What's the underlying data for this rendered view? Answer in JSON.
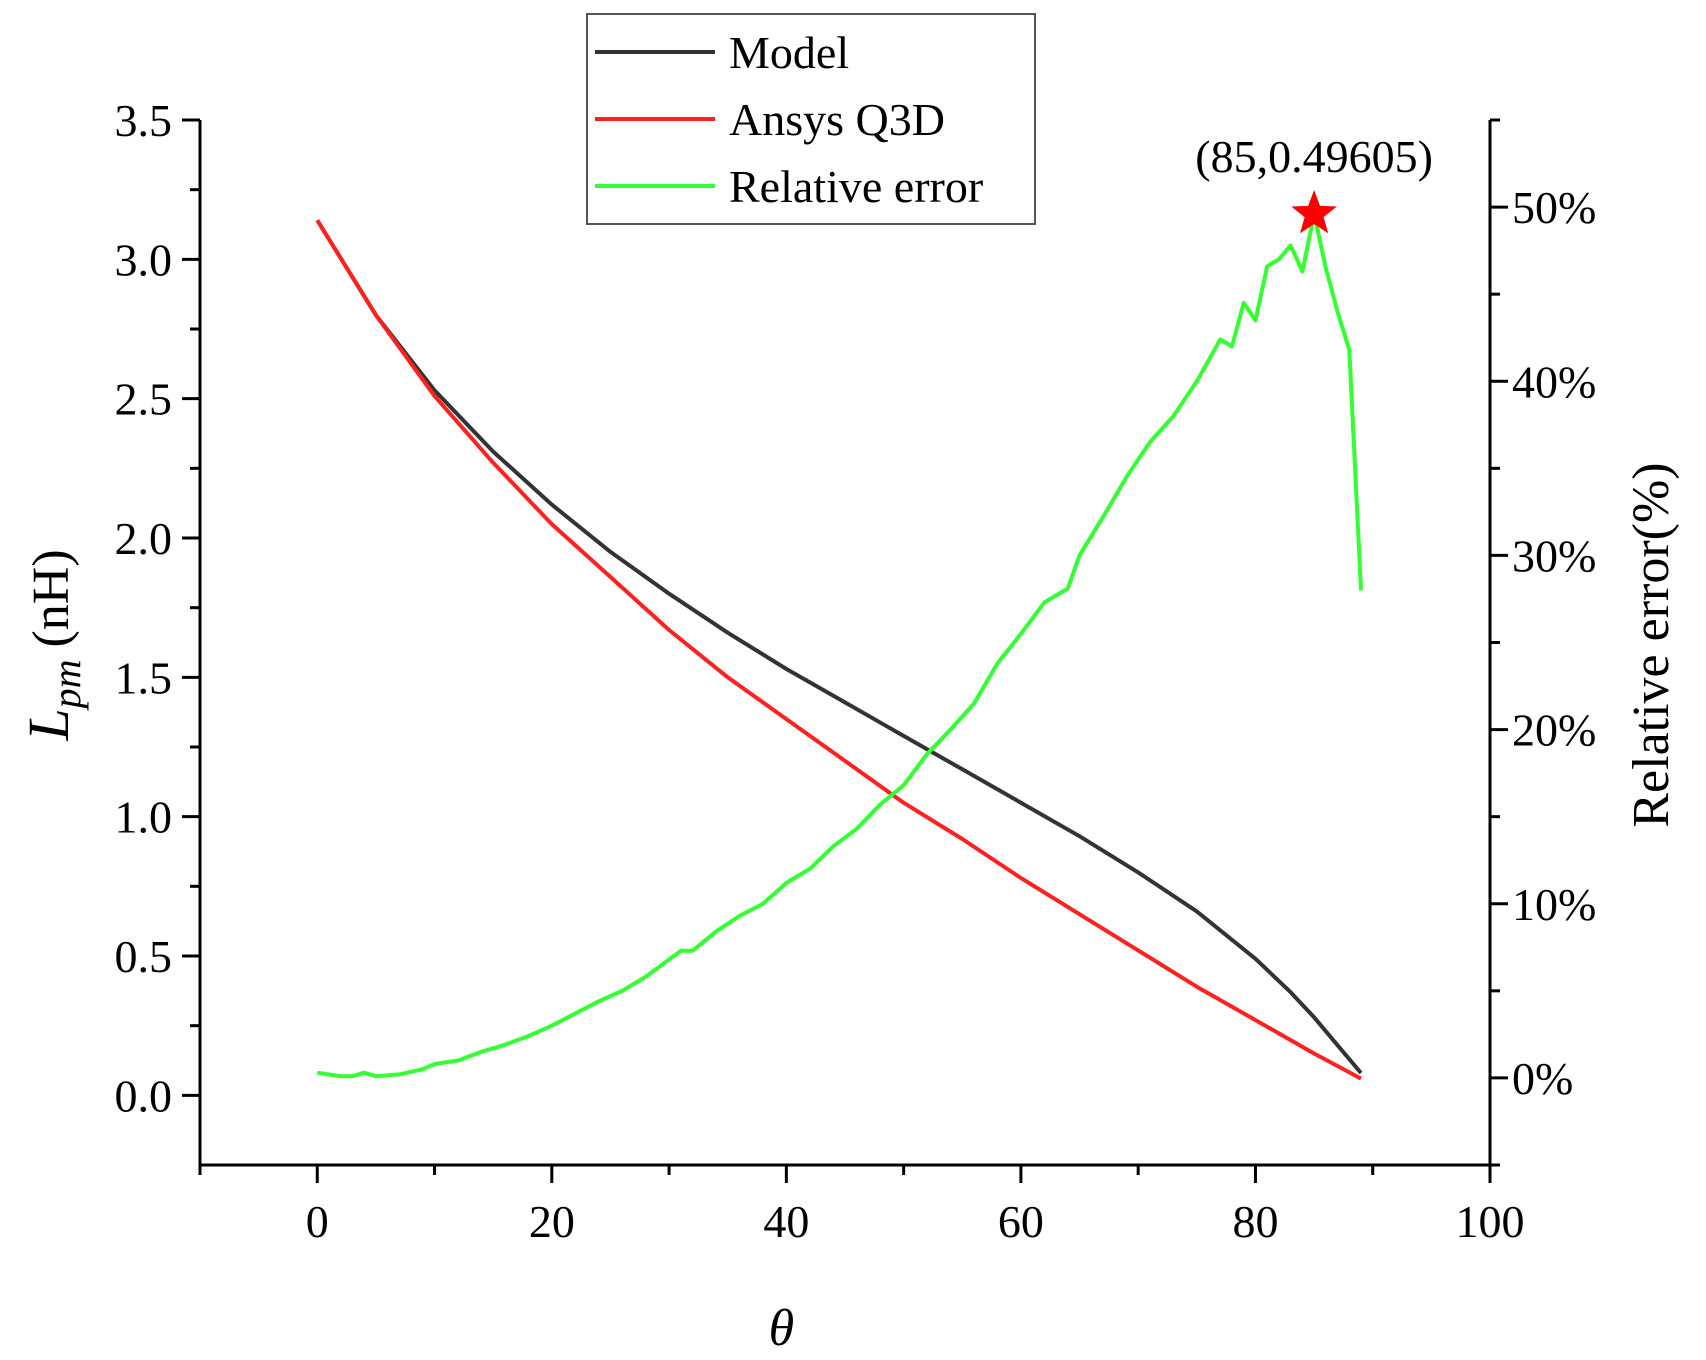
{
  "chart_data": {
    "type": "line",
    "x_axis": {
      "label": "θ",
      "range": [
        -10,
        100
      ],
      "ticks": [
        0,
        20,
        40,
        60,
        80,
        100
      ],
      "tick_labels": [
        "0",
        "20",
        "40",
        "60",
        "80",
        "100"
      ],
      "minor_step": 10
    },
    "y_left": {
      "label_main": "L",
      "label_sub": "pm",
      "label_unit": "(nH)",
      "range": [
        -0.25,
        3.5
      ],
      "ticks": [
        0.0,
        0.5,
        1.0,
        1.5,
        2.0,
        2.5,
        3.0,
        3.5
      ],
      "tick_labels": [
        "0.0",
        "0.5",
        "1.0",
        "1.5",
        "2.0",
        "2.5",
        "3.0",
        "3.5"
      ]
    },
    "y_right": {
      "label": "Relative error(%)",
      "range": [
        -0.05,
        0.55
      ],
      "ticks": [
        0.0,
        0.1,
        0.2,
        0.3,
        0.4,
        0.5
      ],
      "tick_labels": [
        "0%",
        "10%",
        "20%",
        "30%",
        "40%",
        "50%"
      ]
    },
    "legend": {
      "position": "top-center",
      "entries": [
        "Model",
        "Ansys Q3D",
        "Relative error"
      ]
    },
    "series": [
      {
        "name": "Model",
        "axis": "left",
        "color": "#333333",
        "x": [
          0,
          5,
          10,
          15,
          20,
          25,
          30,
          35,
          40,
          45,
          50,
          55,
          60,
          65,
          70,
          75,
          80,
          83,
          85,
          87,
          89
        ],
        "y": [
          3.14,
          2.8,
          2.53,
          2.31,
          2.12,
          1.95,
          1.8,
          1.66,
          1.53,
          1.41,
          1.29,
          1.17,
          1.05,
          0.93,
          0.8,
          0.66,
          0.49,
          0.37,
          0.28,
          0.18,
          0.08
        ]
      },
      {
        "name": "Ansys Q3D",
        "axis": "left",
        "color": "#ff2020",
        "x": [
          0,
          5,
          10,
          15,
          20,
          25,
          30,
          35,
          40,
          45,
          50,
          55,
          60,
          65,
          70,
          75,
          80,
          85,
          89
        ],
        "y": [
          3.14,
          2.8,
          2.51,
          2.27,
          2.05,
          1.86,
          1.67,
          1.5,
          1.35,
          1.2,
          1.05,
          0.92,
          0.78,
          0.65,
          0.52,
          0.39,
          0.27,
          0.15,
          0.06
        ]
      },
      {
        "name": "Relative error",
        "axis": "right",
        "color": "#33ff33",
        "x": [
          0,
          2,
          3,
          4,
          5,
          7,
          9,
          10,
          12,
          14,
          16,
          18,
          20,
          22,
          24,
          26,
          28,
          30,
          31,
          32,
          34,
          36,
          38,
          40,
          42,
          44,
          46,
          48,
          50,
          52,
          54,
          56,
          58,
          60,
          62,
          64,
          65,
          67,
          69,
          71,
          73,
          75,
          77,
          78,
          79,
          80,
          81,
          82,
          83,
          84,
          85,
          86,
          87,
          88,
          89
        ],
        "y": [
          0.003,
          0.001,
          0.001,
          0.003,
          0.001,
          0.002,
          0.005,
          0.008,
          0.01,
          0.015,
          0.019,
          0.024,
          0.03,
          0.037,
          0.044,
          0.05,
          0.058,
          0.068,
          0.073,
          0.073,
          0.084,
          0.093,
          0.1,
          0.112,
          0.12,
          0.133,
          0.143,
          0.157,
          0.168,
          0.186,
          0.2,
          0.215,
          0.238,
          0.255,
          0.273,
          0.281,
          0.3,
          0.322,
          0.345,
          0.365,
          0.38,
          0.4,
          0.424,
          0.42,
          0.445,
          0.435,
          0.466,
          0.47,
          0.478,
          0.463,
          0.496,
          0.465,
          0.44,
          0.418,
          0.28
        ]
      }
    ],
    "annotation": {
      "text": "(85,0.49605)",
      "x": 85,
      "y": 0.49605,
      "axis": "right",
      "marker": "star",
      "color": "#ff0000"
    }
  }
}
